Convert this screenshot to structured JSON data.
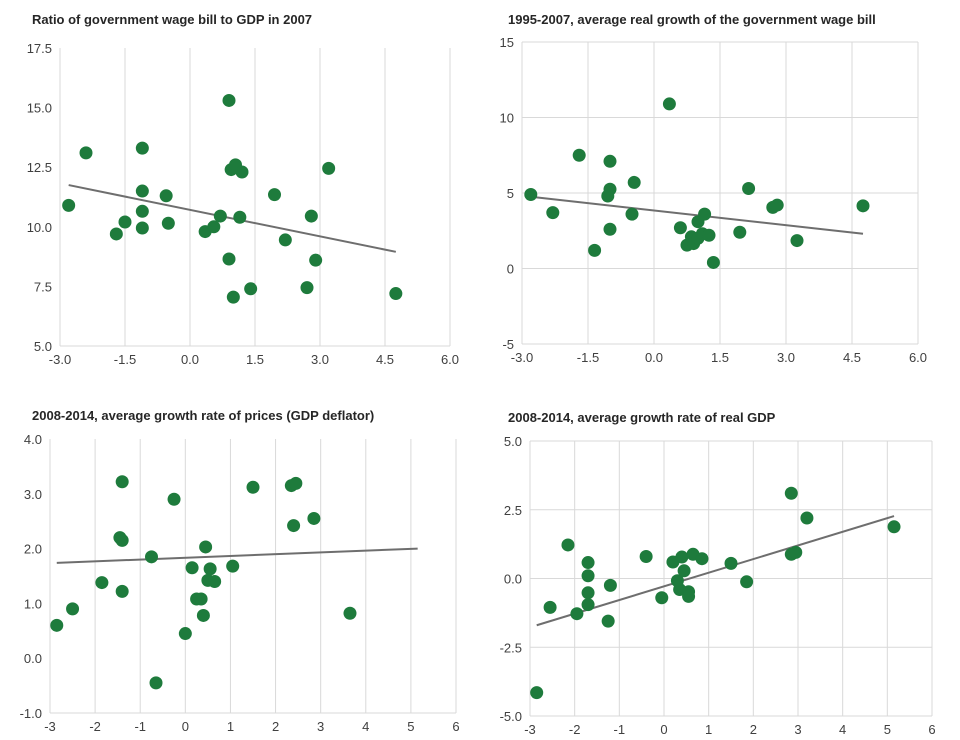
{
  "styles": {
    "marker_color": "#1e7b3c",
    "trend_color": "#6e6e6e",
    "grid_color": "#d9d9d9"
  },
  "chart_data": [
    {
      "type": "scatter",
      "title": "Ratio of government wage bill to GDP in 2007",
      "xlabel": "",
      "ylabel": "",
      "xlim": [
        -3,
        6
      ],
      "ylim": [
        5,
        17.5
      ],
      "xticks": [
        -3,
        -1.5,
        0,
        1.5,
        3,
        4.5,
        6
      ],
      "yticks": [
        5,
        7.5,
        10,
        12.5,
        15,
        17.5
      ],
      "xtick_labels": [
        "-3.0",
        "-1.5",
        "0.0",
        "1.5",
        "3.0",
        "4.5",
        "6.0"
      ],
      "ytick_labels": [
        "5.0",
        "7.5",
        "10.0",
        "12.5",
        "15.0",
        "17.5"
      ],
      "grid": "vertical",
      "points": [
        [
          -2.8,
          10.9
        ],
        [
          -2.4,
          13.1
        ],
        [
          -1.7,
          9.7
        ],
        [
          -1.5,
          10.2
        ],
        [
          -1.1,
          11.5
        ],
        [
          -1.1,
          13.3
        ],
        [
          -1.1,
          10.65
        ],
        [
          -1.1,
          9.95
        ],
        [
          -0.5,
          10.15
        ],
        [
          -0.55,
          11.3
        ],
        [
          0.35,
          9.8
        ],
        [
          0.55,
          10.0
        ],
        [
          0.7,
          10.45
        ],
        [
          0.9,
          15.3
        ],
        [
          0.95,
          12.4
        ],
        [
          1.05,
          12.6
        ],
        [
          1.15,
          10.4
        ],
        [
          1.2,
          12.3
        ],
        [
          0.9,
          8.65
        ],
        [
          1.0,
          7.05
        ],
        [
          1.4,
          7.4
        ],
        [
          1.95,
          11.35
        ],
        [
          2.2,
          9.45
        ],
        [
          2.7,
          7.45
        ],
        [
          2.8,
          10.45
        ],
        [
          2.9,
          8.6
        ],
        [
          3.2,
          12.45
        ],
        [
          4.75,
          7.2
        ]
      ],
      "trendline": [
        [
          -2.8,
          11.75
        ],
        [
          4.75,
          8.95
        ]
      ]
    },
    {
      "type": "scatter",
      "title": "1995-2007, average real growth of the government wage bill",
      "xlabel": "",
      "ylabel": "",
      "xlim": [
        -3,
        6
      ],
      "ylim": [
        -5,
        15
      ],
      "xticks": [
        -3,
        -1.5,
        0,
        1.5,
        3,
        4.5,
        6
      ],
      "yticks": [
        -5,
        0,
        5,
        10,
        15
      ],
      "xtick_labels": [
        "-3.0",
        "-1.5",
        "0.0",
        "1.5",
        "3.0",
        "4.5",
        "6.0"
      ],
      "ytick_labels": [
        "-5",
        "0",
        "5",
        "10",
        "15"
      ],
      "grid": "both",
      "points": [
        [
          -2.8,
          4.9
        ],
        [
          -2.3,
          3.7
        ],
        [
          -1.7,
          7.5
        ],
        [
          -1.35,
          1.2
        ],
        [
          -1.0,
          7.1
        ],
        [
          -1.0,
          5.25
        ],
        [
          -1.05,
          4.8
        ],
        [
          -1.0,
          2.6
        ],
        [
          -0.45,
          5.7
        ],
        [
          -0.5,
          3.6
        ],
        [
          0.35,
          10.9
        ],
        [
          0.6,
          2.7
        ],
        [
          0.75,
          1.55
        ],
        [
          0.85,
          2.1
        ],
        [
          0.9,
          1.65
        ],
        [
          1.0,
          3.1
        ],
        [
          1.0,
          2.0
        ],
        [
          1.1,
          2.3
        ],
        [
          1.15,
          3.6
        ],
        [
          1.25,
          2.2
        ],
        [
          1.35,
          0.4
        ],
        [
          1.95,
          2.4
        ],
        [
          2.15,
          5.3
        ],
        [
          2.7,
          4.05
        ],
        [
          2.8,
          4.2
        ],
        [
          3.25,
          1.85
        ],
        [
          4.75,
          4.15
        ]
      ],
      "trendline": [
        [
          -2.8,
          4.75
        ],
        [
          4.75,
          2.3
        ]
      ]
    },
    {
      "type": "scatter",
      "title": "2008-2014, average growth rate of prices (GDP deflator)",
      "xlabel": "",
      "ylabel": "",
      "xlim": [
        -3,
        6
      ],
      "ylim": [
        -1,
        4
      ],
      "xticks": [
        -3,
        -2,
        -1,
        0,
        1,
        2,
        3,
        4,
        5,
        6
      ],
      "yticks": [
        -1,
        0,
        1,
        2,
        3,
        4
      ],
      "xtick_labels": [
        "-3",
        "-2",
        "-1",
        "0",
        "1",
        "2",
        "3",
        "4",
        "5",
        "6"
      ],
      "ytick_labels": [
        "-1.0",
        "0.0",
        "1.0",
        "2.0",
        "3.0",
        "4.0"
      ],
      "grid": "vertical",
      "points": [
        [
          -2.85,
          0.6
        ],
        [
          -2.5,
          0.9
        ],
        [
          -1.85,
          1.38
        ],
        [
          -1.45,
          2.2
        ],
        [
          -1.4,
          2.15
        ],
        [
          -1.4,
          1.22
        ],
        [
          -1.4,
          3.22
        ],
        [
          -0.75,
          1.85
        ],
        [
          -0.65,
          -0.45
        ],
        [
          -0.25,
          2.9
        ],
        [
          0.0,
          0.45
        ],
        [
          0.15,
          1.65
        ],
        [
          0.25,
          1.08
        ],
        [
          0.35,
          1.08
        ],
        [
          0.4,
          0.78
        ],
        [
          0.45,
          2.03
        ],
        [
          0.5,
          1.42
        ],
        [
          0.55,
          1.63
        ],
        [
          0.65,
          1.4
        ],
        [
          1.05,
          1.68
        ],
        [
          1.5,
          3.12
        ],
        [
          2.35,
          3.15
        ],
        [
          2.4,
          2.42
        ],
        [
          2.45,
          3.19
        ],
        [
          2.85,
          2.55
        ],
        [
          3.65,
          0.82
        ]
      ],
      "trendline": [
        [
          -2.85,
          1.74
        ],
        [
          5.15,
          2.0
        ]
      ]
    },
    {
      "type": "scatter",
      "title": "2008-2014, average growth rate of real GDP",
      "xlabel": "",
      "ylabel": "",
      "xlim": [
        -3,
        6
      ],
      "ylim": [
        -5,
        5
      ],
      "xticks": [
        -3,
        -2,
        -1,
        0,
        1,
        2,
        3,
        4,
        5,
        6
      ],
      "yticks": [
        -5,
        -2.5,
        0,
        2.5,
        5
      ],
      "xtick_labels": [
        "-3",
        "-2",
        "-1",
        "0",
        "1",
        "2",
        "3",
        "4",
        "5",
        "6"
      ],
      "ytick_labels": [
        "-5.0",
        "-2.5",
        "0.0",
        "2.5",
        "5.0"
      ],
      "grid": "both",
      "points": [
        [
          -2.85,
          -4.15
        ],
        [
          -2.55,
          -1.05
        ],
        [
          -2.15,
          1.22
        ],
        [
          -1.95,
          -1.28
        ],
        [
          -1.7,
          0.58
        ],
        [
          -1.7,
          0.1
        ],
        [
          -1.7,
          -0.52
        ],
        [
          -1.7,
          -0.95
        ],
        [
          -1.25,
          -1.55
        ],
        [
          -1.2,
          -0.25
        ],
        [
          -0.4,
          0.8
        ],
        [
          -0.05,
          -0.7
        ],
        [
          0.2,
          0.6
        ],
        [
          0.3,
          -0.08
        ],
        [
          0.35,
          -0.4
        ],
        [
          0.4,
          0.78
        ],
        [
          0.45,
          0.28
        ],
        [
          0.55,
          -0.48
        ],
        [
          0.55,
          -0.65
        ],
        [
          0.65,
          0.88
        ],
        [
          0.85,
          0.72
        ],
        [
          1.5,
          0.55
        ],
        [
          1.85,
          -0.12
        ],
        [
          2.85,
          0.88
        ],
        [
          2.95,
          0.95
        ],
        [
          2.85,
          3.1
        ],
        [
          3.2,
          2.2
        ],
        [
          5.15,
          1.88
        ]
      ],
      "trendline": [
        [
          -2.85,
          -1.7
        ],
        [
          5.15,
          2.27
        ]
      ]
    }
  ]
}
